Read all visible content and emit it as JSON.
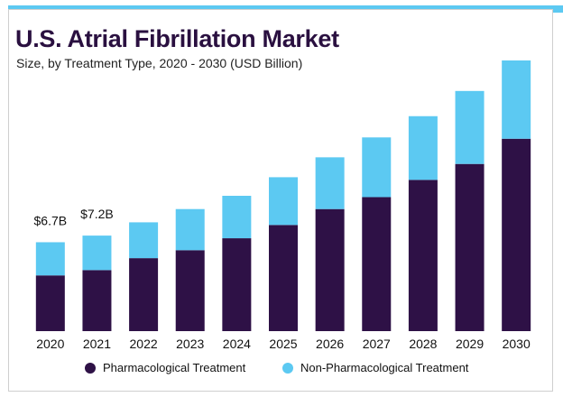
{
  "colors": {
    "accent": "#5cc9f2",
    "pharmacological": "#2e1146",
    "non_pharmacological": "#5cc9f2",
    "title": "#2a1040"
  },
  "chart_data": {
    "type": "bar",
    "stacked": true,
    "title": "U.S. Atrial Fibrillation Market",
    "subtitle": "Size, by Treatment Type, 2020 - 2030 (USD Billion)",
    "categories": [
      "2020",
      "2021",
      "2022",
      "2023",
      "2024",
      "2025",
      "2026",
      "2027",
      "2028",
      "2029",
      "2030"
    ],
    "series": [
      {
        "name": "Pharmacological Treatment",
        "color": "#2e1146",
        "values": [
          4.2,
          4.6,
          5.5,
          6.1,
          7.0,
          8.0,
          9.2,
          10.1,
          11.4,
          12.6,
          14.5
        ]
      },
      {
        "name": "Non-Pharmacological Treatment",
        "color": "#5cc9f2",
        "values": [
          2.5,
          2.6,
          2.7,
          3.1,
          3.2,
          3.6,
          3.9,
          4.5,
          4.8,
          5.5,
          5.9
        ]
      }
    ],
    "data_labels": [
      {
        "category": "2020",
        "text": "$6.7B"
      },
      {
        "category": "2021",
        "text": "$7.2B"
      }
    ],
    "ylim": [
      0,
      20.4
    ],
    "grid": false,
    "legend_position": "bottom"
  }
}
